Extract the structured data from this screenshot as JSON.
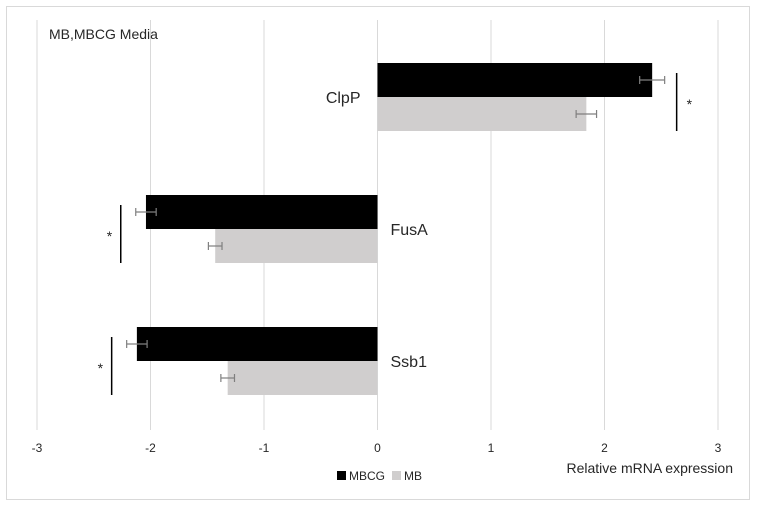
{
  "chart_data": {
    "type": "bar",
    "orientation": "horizontal",
    "title": "MB,MBCG Media",
    "xlabel": "Relative mRNA expression",
    "ylabel": "",
    "xlim": [
      -3,
      3
    ],
    "x_ticks": [
      "-3",
      "-2",
      "-1",
      "0",
      "1",
      "2",
      "3"
    ],
    "grid": true,
    "legend_position": "bottom-left",
    "categories": [
      "ClpP",
      "FusA",
      "Ssb1"
    ],
    "series": [
      {
        "name": "MBCG",
        "color": "#000000",
        "values": [
          2.42,
          -2.04,
          -2.12
        ],
        "errors": [
          0.11,
          0.09,
          0.09
        ]
      },
      {
        "name": "MB",
        "color": "#d0cece",
        "values": [
          1.84,
          -1.43,
          -1.32
        ],
        "errors": [
          0.09,
          0.06,
          0.06
        ]
      }
    ],
    "annotations": [
      {
        "category": "ClpP",
        "text": "*"
      },
      {
        "category": "FusA",
        "text": "*"
      },
      {
        "category": "Ssb1",
        "text": "*"
      }
    ]
  }
}
